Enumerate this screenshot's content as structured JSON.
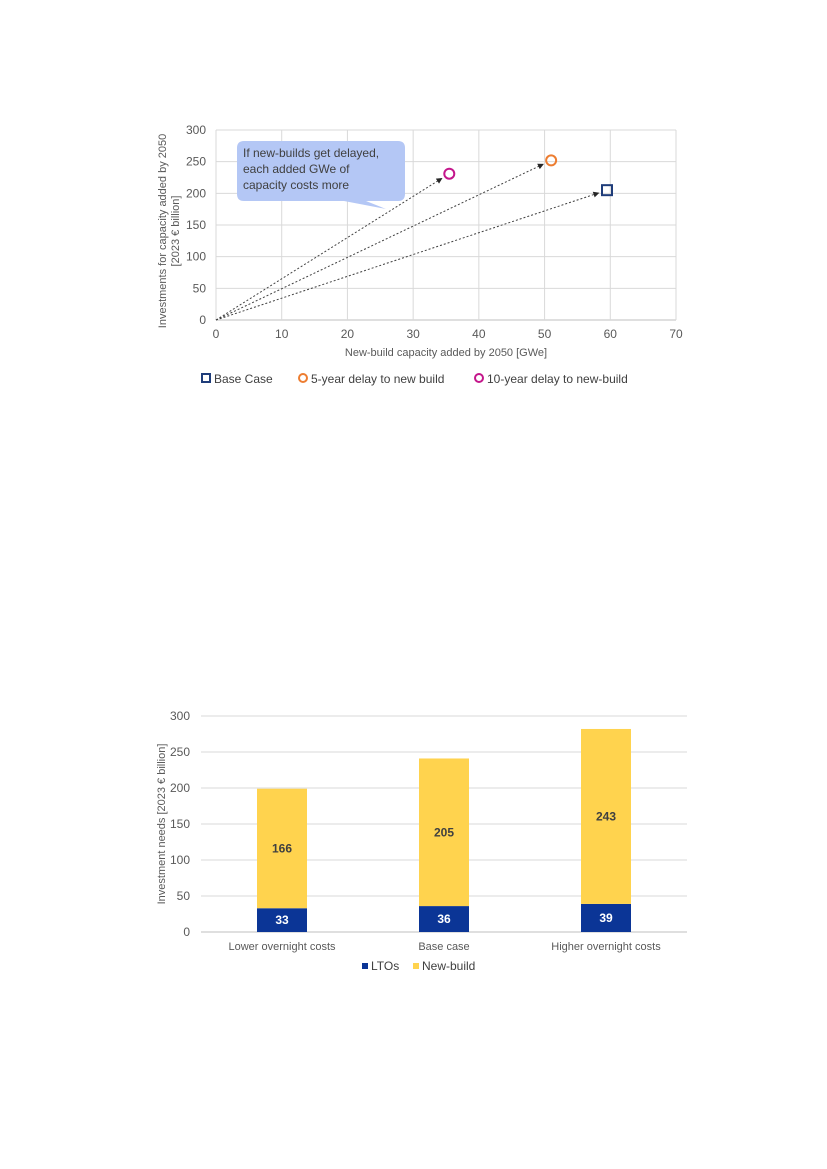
{
  "chart_data": [
    {
      "type": "scatter",
      "title": "",
      "xlabel": "New-build capacity added by 2050 [GWe]",
      "ylabel_lines": [
        "Investments for capacity added by 2050",
        "[2023 € billion]"
      ],
      "xlim": [
        0,
        70
      ],
      "ylim": [
        0,
        300
      ],
      "x_ticks": [
        0,
        10,
        20,
        30,
        40,
        50,
        60,
        70
      ],
      "y_ticks": [
        0,
        50,
        100,
        150,
        200,
        250,
        300
      ],
      "grid": true,
      "legend_position": "bottom",
      "series": [
        {
          "name": "Base Case",
          "marker": "square",
          "color": "#1F3D7A",
          "x": [
            59.5
          ],
          "y": [
            205
          ]
        },
        {
          "name": "5-year delay to new build",
          "marker": "circle",
          "color": "#ED7D31",
          "x": [
            51
          ],
          "y": [
            252
          ]
        },
        {
          "name": "10-year delay to new-build",
          "marker": "circle",
          "color": "#C4168B",
          "x": [
            35.5
          ],
          "y": [
            231
          ]
        }
      ],
      "annotation": {
        "lines": [
          "If new-builds  get delayed,",
          "each added GWe of",
          "capacity costs more"
        ],
        "fill": "#B4C7F5"
      }
    },
    {
      "type": "bar",
      "stacked": true,
      "title": "",
      "xlabel": "",
      "ylabel": "Investment needs [2023 € billion]",
      "ylim": [
        0,
        300
      ],
      "y_ticks": [
        0,
        50,
        100,
        150,
        200,
        250,
        300
      ],
      "grid": true,
      "legend_position": "bottom",
      "categories": [
        "Lower overnight costs",
        "Base case",
        "Higher overnight costs"
      ],
      "series": [
        {
          "name": "LTOs",
          "color": "#0B3596",
          "values": [
            33,
            36,
            39
          ]
        },
        {
          "name": "New-build",
          "color": "#FFD34E",
          "values": [
            166,
            205,
            243
          ]
        }
      ]
    }
  ]
}
